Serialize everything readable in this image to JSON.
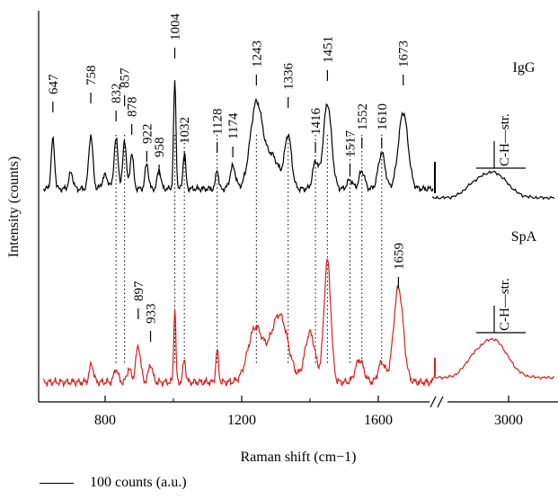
{
  "chart_data": {
    "type": "line",
    "xlabel": "Raman shift (cm−1)",
    "ylabel": "Intensity (counts)",
    "x_ticks": [
      "800",
      "1200",
      "1600",
      "3000"
    ],
    "axis_break": true,
    "grid": false,
    "series": [
      {
        "name": "IgG",
        "color": "#000000",
        "peaks": [
          {
            "x": 647,
            "label": "647"
          },
          {
            "x": 758,
            "label": "758"
          },
          {
            "x": 832,
            "label": "832"
          },
          {
            "x": 857,
            "label": "857"
          },
          {
            "x": 878,
            "label": "878"
          },
          {
            "x": 922,
            "label": "922"
          },
          {
            "x": 958,
            "label": "958"
          },
          {
            "x": 1004,
            "label": "1004"
          },
          {
            "x": 1032,
            "label": "1032"
          },
          {
            "x": 1128,
            "label": "1128"
          },
          {
            "x": 1174,
            "label": "1174"
          },
          {
            "x": 1243,
            "label": "1243"
          },
          {
            "x": 1336,
            "label": "1336"
          },
          {
            "x": 1416,
            "label": "1416"
          },
          {
            "x": 1451,
            "label": "1451"
          },
          {
            "x": 1517,
            "label": "1517"
          },
          {
            "x": 1552,
            "label": "1552"
          },
          {
            "x": 1610,
            "label": "1610"
          },
          {
            "x": 1673,
            "label": "1673"
          }
        ],
        "ch_label": "C-H—str."
      },
      {
        "name": "SpA",
        "color": "#d62020",
        "peaks": [
          {
            "x": 897,
            "label": "897"
          },
          {
            "x": 933,
            "label": "933"
          },
          {
            "x": 1659,
            "label": "1659"
          }
        ],
        "ch_label": "C-H—str."
      }
    ],
    "dotted_guides": [
      832,
      857,
      1004,
      1032,
      1128,
      1243,
      1336,
      1416,
      1451,
      1517,
      1552,
      1610
    ],
    "scale_bar_label": "100 counts (a.u.)"
  }
}
